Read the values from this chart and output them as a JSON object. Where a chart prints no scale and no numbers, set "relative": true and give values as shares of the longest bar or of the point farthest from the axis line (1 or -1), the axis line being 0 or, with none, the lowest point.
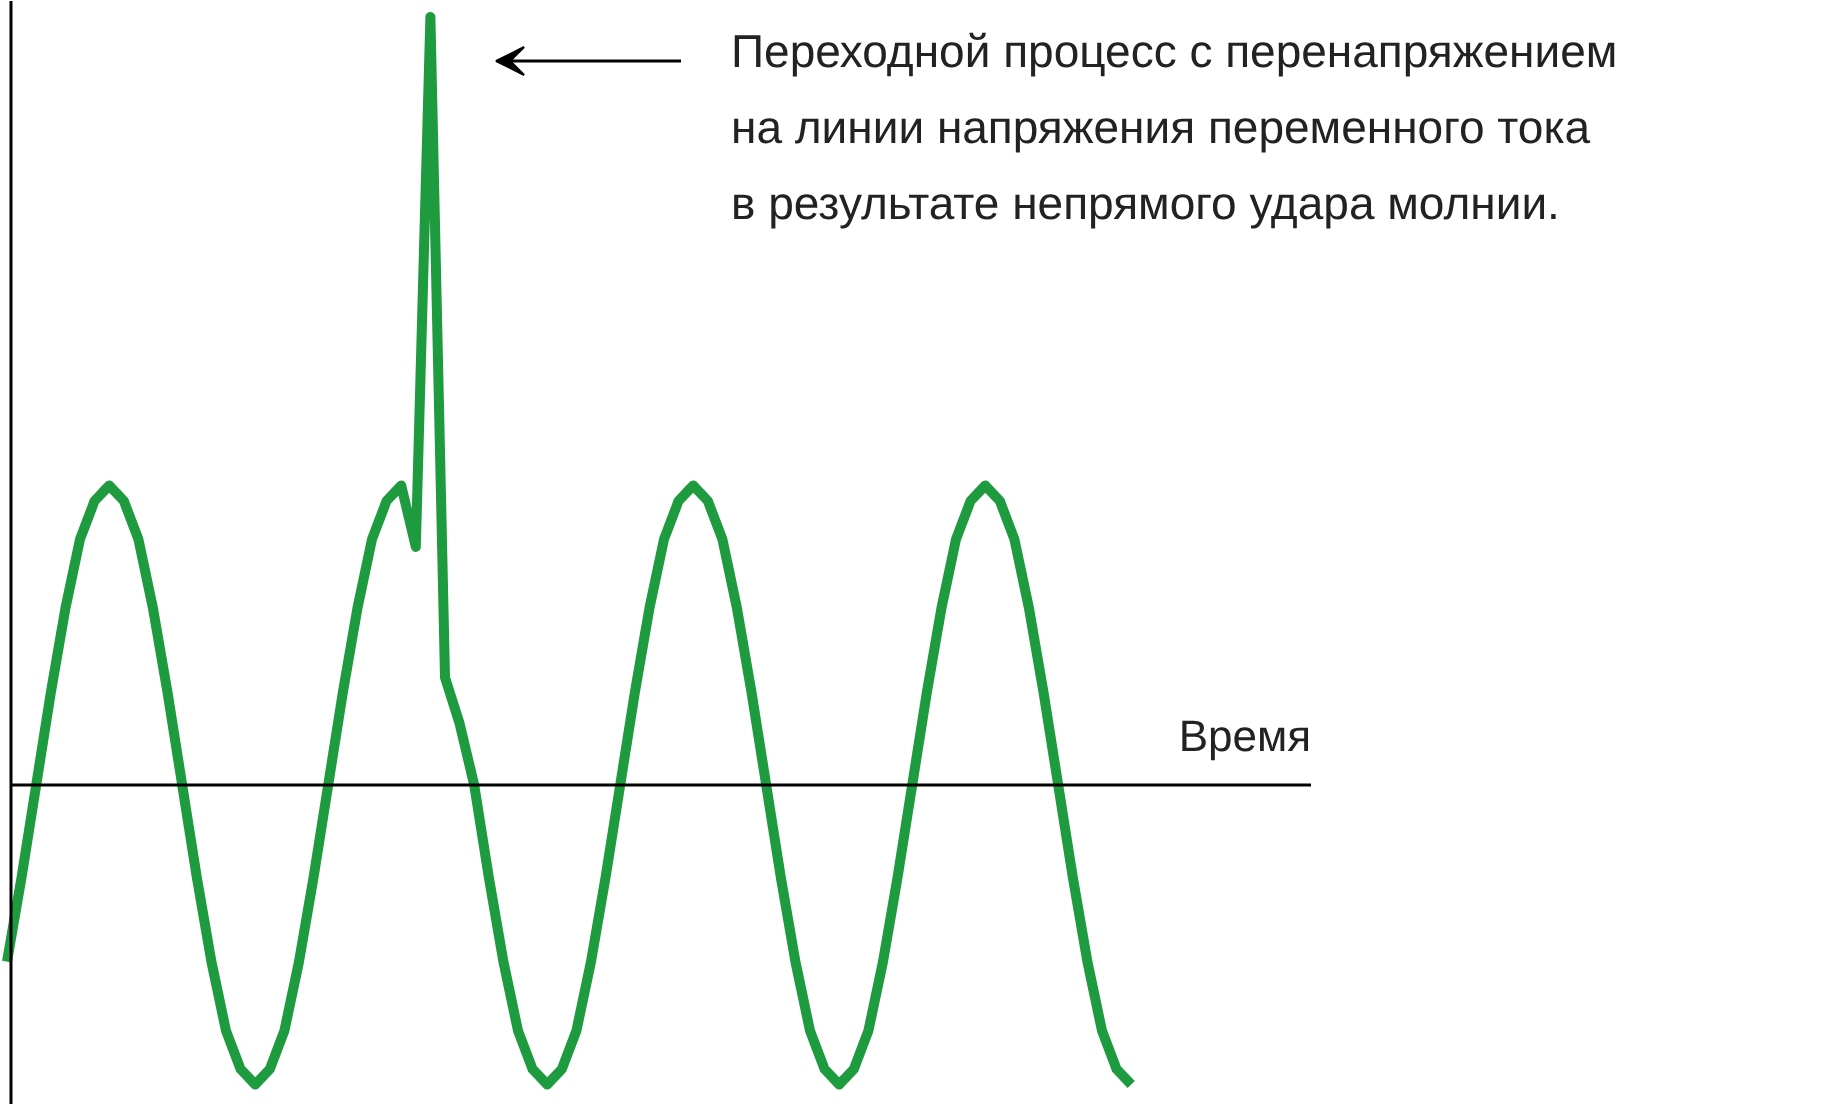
{
  "chart_data": {
    "type": "line",
    "relative": true,
    "xlabel": "Время",
    "categories": [
      null,
      null,
      null,
      null,
      null,
      null,
      null,
      null,
      null,
      null,
      null,
      null,
      null,
      null,
      null,
      null,
      null,
      null,
      null,
      null,
      null,
      null,
      null,
      null,
      null,
      null,
      null,
      null,
      null,
      null,
      null,
      null,
      null,
      null,
      null,
      null,
      null,
      null,
      null,
      null,
      null,
      null,
      null,
      null,
      null,
      null,
      null,
      null,
      null,
      null,
      null,
      null,
      null,
      null,
      null,
      null,
      null,
      null,
      null,
      null,
      null,
      null,
      null,
      null,
      null,
      null,
      null,
      null,
      null,
      null,
      null,
      null,
      null,
      null,
      null,
      null,
      null,
      null
    ],
    "series": [
      {
        "color": "#1e9b3e",
        "values": [
          -0.23,
          -0.12,
          0,
          0.12,
          0.23,
          0.32,
          0.37,
          0.39,
          0.37,
          0.32,
          0.23,
          0.12,
          0,
          -0.12,
          -0.23,
          -0.32,
          -0.37,
          -0.39,
          -0.37,
          -0.32,
          -0.23,
          -0.12,
          0,
          0.12,
          0.23,
          0.32,
          0.37,
          0.39,
          0.31,
          1,
          0.14,
          0.08,
          0,
          -0.12,
          -0.23,
          -0.32,
          -0.37,
          -0.39,
          -0.37,
          -0.32,
          -0.23,
          -0.12,
          0,
          0.12,
          0.23,
          0.32,
          0.37,
          0.39,
          0.37,
          0.32,
          0.23,
          0.12,
          0,
          -0.12,
          -0.23,
          -0.32,
          -0.37,
          -0.39,
          -0.37,
          -0.32,
          -0.23,
          -0.12,
          0,
          0.12,
          0.23,
          0.32,
          0.37,
          0.39,
          0.37,
          0.32,
          0.23,
          0.12,
          0,
          -0.12,
          -0.23,
          -0.32,
          -0.37,
          -0.39
        ]
      }
    ],
    "annotations": [
      "Переходной процесс с перенапряжением\nна линии напряжения переменного тока\nв результате непрямого удара молнии."
    ],
    "grid": false,
    "marker": "none",
    "line_style": "solid"
  }
}
